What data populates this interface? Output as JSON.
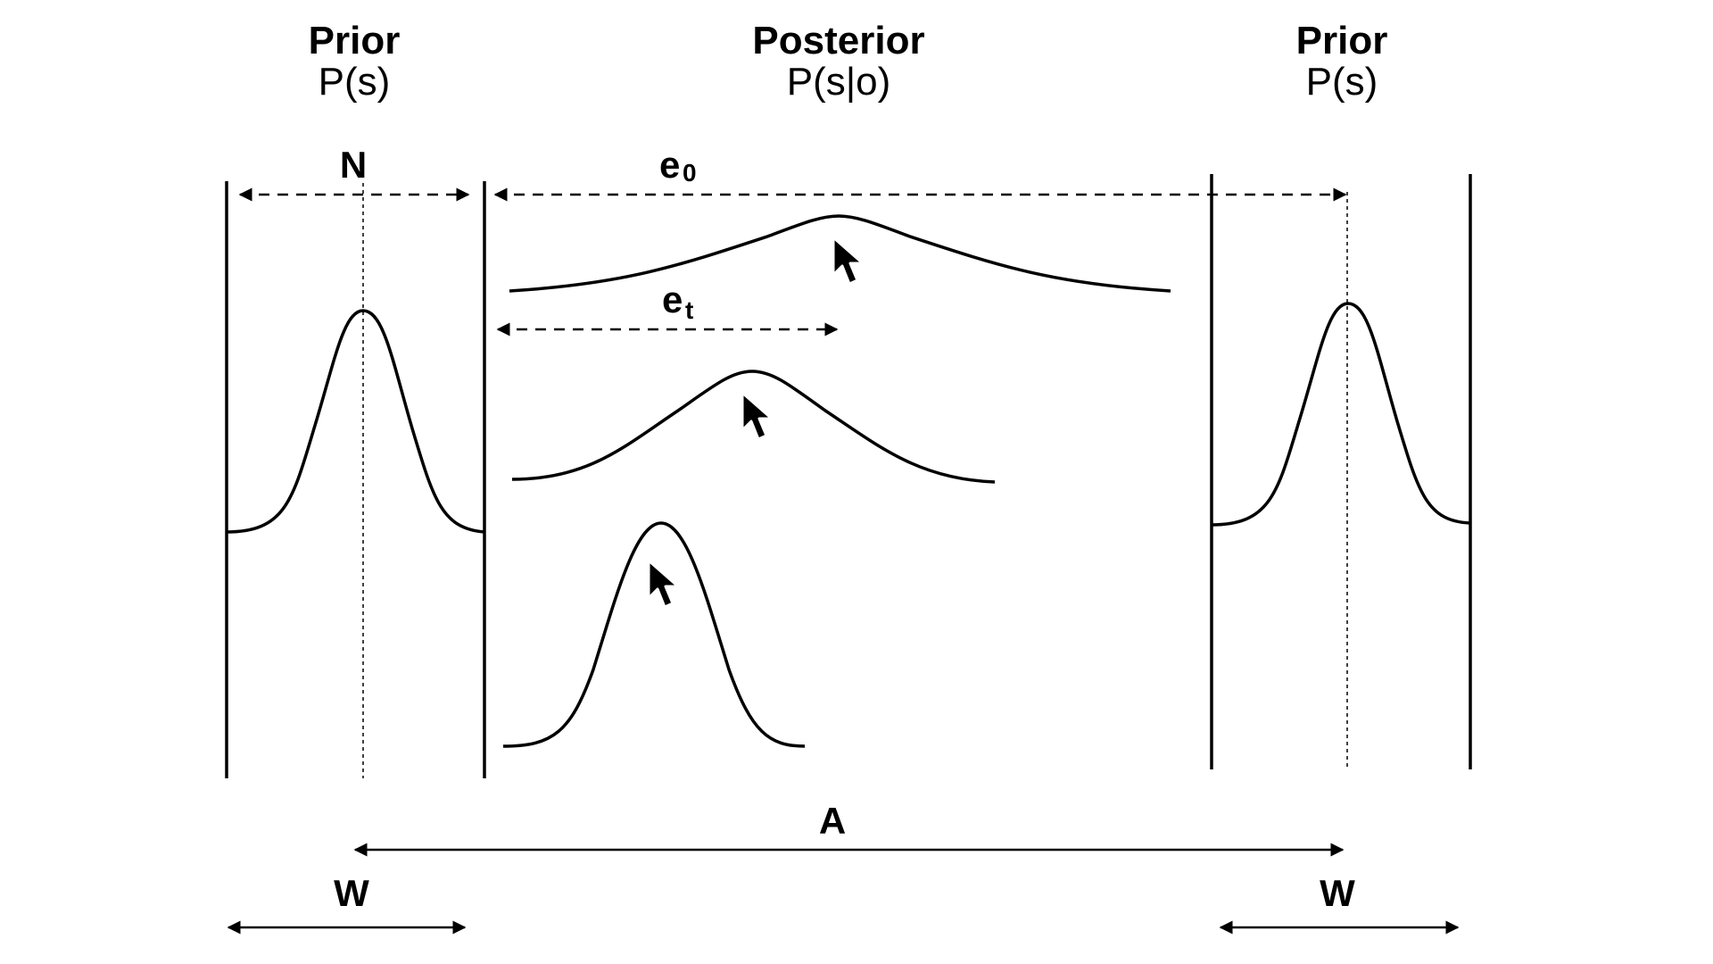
{
  "headings": {
    "left": {
      "title": "Prior",
      "formula": "P(s)"
    },
    "center": {
      "title": "Posterior",
      "formula": "P(s|o)"
    },
    "right": {
      "title": "Prior",
      "formula": "P(s)"
    }
  },
  "labels": {
    "N": "N",
    "e0": {
      "main": "e",
      "sub": "0"
    },
    "et": {
      "main": "e",
      "sub": "t"
    },
    "A": "A",
    "W_left": "W",
    "W_right": "W"
  },
  "icons": [
    "cursor-arrow-icon",
    "cursor-arrow-icon",
    "cursor-arrow-icon"
  ]
}
